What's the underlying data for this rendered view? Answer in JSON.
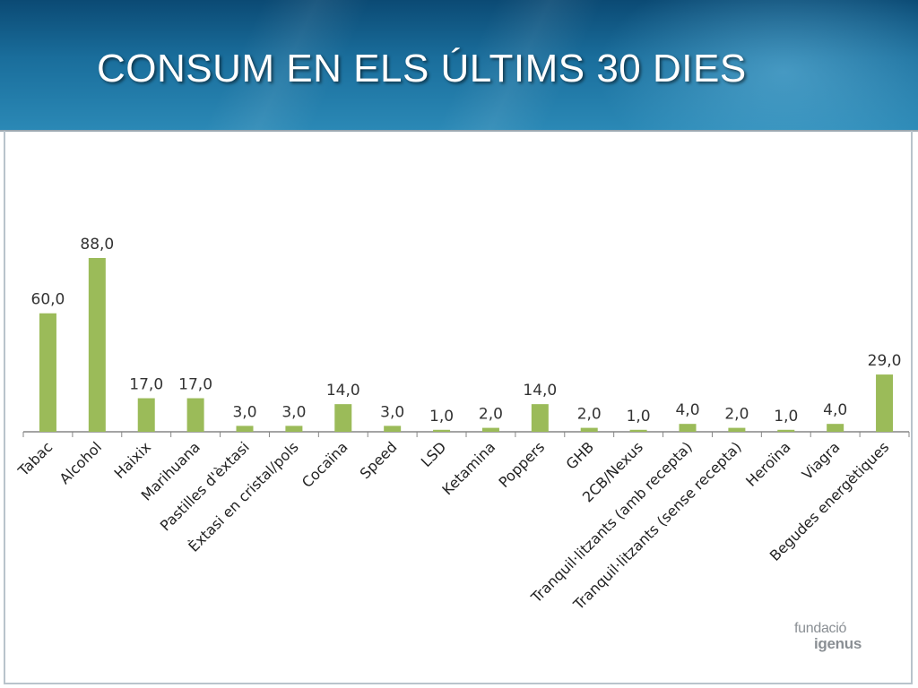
{
  "slide": {
    "title": "CONSUM EN ELS ÚLTIMS 30 DIES"
  },
  "logo": {
    "line1": "fundació",
    "line2": "igenus"
  },
  "colors": {
    "bar": "#9bbb59",
    "axis": "#868686",
    "header": "#1a6e9c"
  },
  "chart_data": {
    "type": "bar",
    "categories": [
      "Tabac",
      "Alcohol",
      "Haixix",
      "Marihuana",
      "Pastilles d'èxtasi",
      "Èxtasi en cristal/pols",
      "Cocaïna",
      "Speed",
      "LSD",
      "Ketamina",
      "Poppers",
      "GHB",
      "2CB/Nexus",
      "Tranquil·litzants (amb recepta)",
      "Tranquil·litzants (sense recepta)",
      "Heroïna",
      "Viagra",
      "Begudes energètiques"
    ],
    "values": [
      60.0,
      88.0,
      17.0,
      17.0,
      3.0,
      3.0,
      14.0,
      3.0,
      1.0,
      2.0,
      14.0,
      2.0,
      1.0,
      4.0,
      2.0,
      1.0,
      4.0,
      29.0
    ],
    "data_labels": [
      "60,0",
      "88,0",
      "17,0",
      "17,0",
      "3,0",
      "3,0",
      "14,0",
      "3,0",
      "1,0",
      "2,0",
      "14,0",
      "2,0",
      "1,0",
      "4,0",
      "2,0",
      "1,0",
      "4,0",
      "29,0"
    ],
    "title": "",
    "xlabel": "",
    "ylabel": "",
    "ylim": [
      0,
      88
    ],
    "grid": false,
    "legend": "none"
  }
}
